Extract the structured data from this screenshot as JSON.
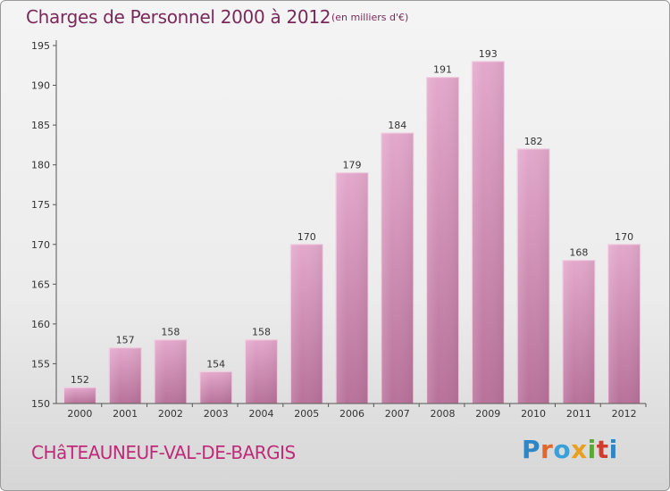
{
  "header": {
    "title": "Charges de Personnel 2000 à 2012",
    "subtitle": "(en milliers d'€)"
  },
  "footer": {
    "municipality": "CHâTEAUNEUF-VAL-DE-BARGIS",
    "logo_text": "Proxiti"
  },
  "colors": {
    "bar_light": "#e3a8cb",
    "bar_dark": "#b8729a",
    "title": "#7a2a5a",
    "municipality": "#c02a78",
    "logo_letters": [
      "#2f86c6",
      "#e0682a",
      "#3aa0d8",
      "#e8a020",
      "#5aa836",
      "#d43a2c",
      "#2f86c6"
    ]
  },
  "chart_data": {
    "type": "bar",
    "categories": [
      "2000",
      "2001",
      "2002",
      "2003",
      "2004",
      "2005",
      "2006",
      "2007",
      "2008",
      "2009",
      "2010",
      "2011",
      "2012"
    ],
    "values": [
      152,
      157,
      158,
      154,
      158,
      170,
      179,
      184,
      191,
      193,
      182,
      168,
      170
    ],
    "ylim": [
      150,
      195
    ],
    "yticks": [
      150,
      155,
      160,
      165,
      170,
      175,
      180,
      185,
      190,
      195
    ],
    "grid": false,
    "data_labels": true
  }
}
